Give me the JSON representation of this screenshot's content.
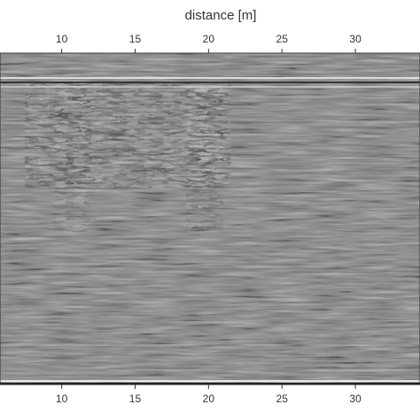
{
  "chart_data": {
    "type": "heatmap",
    "title": "",
    "xlabel": "distance [m]",
    "ylabel": "",
    "xlim": [
      5.8,
      34.4
    ],
    "x_ticks": [
      10,
      15,
      20,
      25,
      30
    ],
    "x_tick_labels": [
      "10",
      "15",
      "20",
      "25",
      "30"
    ],
    "x_axis_position": [
      "top",
      "bottom"
    ],
    "colormap": "grayscale",
    "colors": {
      "background": "#808080",
      "positive": "#ffffff",
      "negative": "#000000"
    },
    "description": "Ground-penetrating radar radargram section",
    "strong_reflection_zones": [
      {
        "x_start": 7.5,
        "x_end": 21.5
      },
      {
        "x_start": 9.5,
        "x_end": 12.0
      },
      {
        "x_start": 18.5,
        "x_end": 21.0
      }
    ]
  }
}
